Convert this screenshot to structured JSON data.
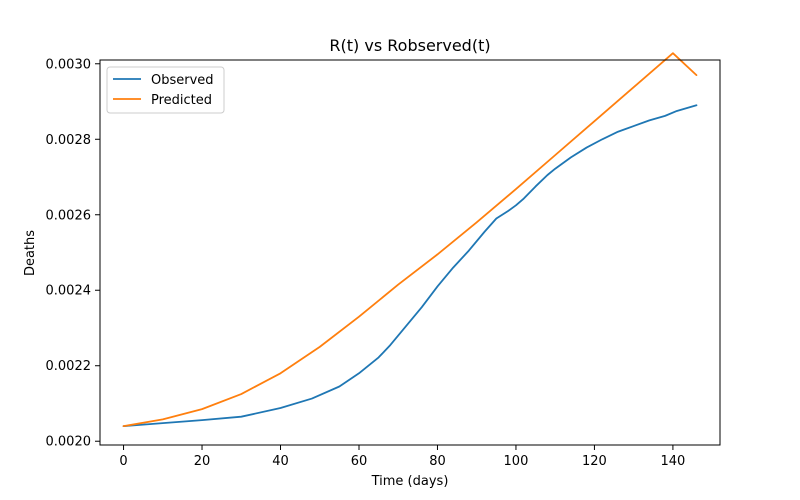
{
  "chart_data": {
    "type": "line",
    "title": "R(t) vs Robserved(t)",
    "xlabel": "Time (days)",
    "ylabel": "Deaths",
    "xlim": [
      -6,
      152
    ],
    "ylim": [
      0.00199,
      0.00301
    ],
    "xticks": [
      0,
      20,
      40,
      60,
      80,
      100,
      120,
      140
    ],
    "yticks": [
      0.002,
      0.0022,
      0.0024,
      0.0026,
      0.0028,
      0.003
    ],
    "ytick_labels": [
      "0.0020",
      "0.0022",
      "0.0024",
      "0.0026",
      "0.0028",
      "0.0030"
    ],
    "grid": false,
    "legend_position": "top-left",
    "series": [
      {
        "name": "Observed",
        "color": "#1f77b4",
        "x": [
          0,
          10,
          20,
          30,
          40,
          48,
          55,
          60,
          65,
          68,
          72,
          76,
          80,
          84,
          88,
          92,
          95,
          98,
          100,
          102,
          105,
          108,
          110,
          114,
          118,
          122,
          126,
          130,
          134,
          138,
          141,
          146
        ],
        "y": [
          0.00204,
          0.002048,
          0.002056,
          0.002065,
          0.002088,
          0.002113,
          0.002145,
          0.00218,
          0.002222,
          0.002255,
          0.002305,
          0.002355,
          0.00241,
          0.00246,
          0.002505,
          0.002555,
          0.00259,
          0.00261,
          0.002625,
          0.002643,
          0.002675,
          0.002705,
          0.002722,
          0.002752,
          0.002778,
          0.0028,
          0.00282,
          0.002835,
          0.00285,
          0.002862,
          0.002875,
          0.00289
        ]
      },
      {
        "name": "Predicted",
        "color": "#ff7f0e",
        "x": [
          0,
          10,
          20,
          30,
          40,
          50,
          60,
          70,
          80,
          90,
          100,
          110,
          120,
          130,
          140,
          146
        ],
        "y": [
          0.00204,
          0.002058,
          0.002085,
          0.002125,
          0.00218,
          0.00225,
          0.00233,
          0.002415,
          0.002495,
          0.00258,
          0.002668,
          0.002758,
          0.002848,
          0.002938,
          0.003028,
          0.00297
        ]
      }
    ]
  }
}
